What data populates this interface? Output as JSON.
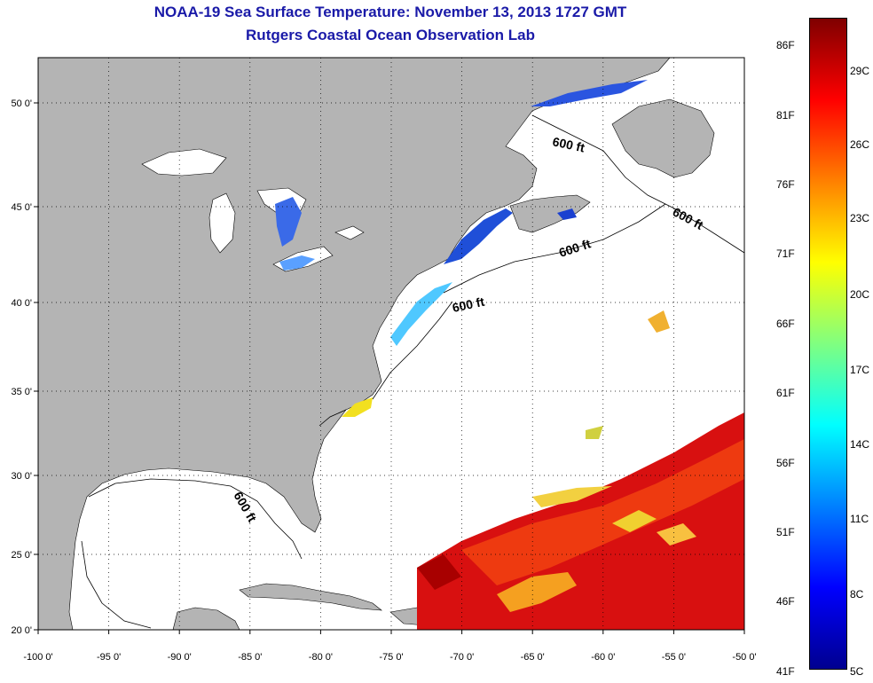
{
  "title": {
    "line1": "NOAA-19 Sea Surface Temperature:  November 13, 2013 1727 GMT",
    "line2": "Rutgers Coastal Ocean Observation Lab"
  },
  "map": {
    "lon_labels": [
      "-100 0'",
      "-95 0'",
      "-90 0'",
      "-85 0'",
      "-80 0'",
      "-75 0'",
      "-70 0'",
      "-65 0'",
      "-60 0'",
      "-55 0'",
      "-50 0'"
    ],
    "lat_labels": [
      "50 0'",
      "45 0'",
      "40 0'",
      "35 0'",
      "30 0'",
      "25 0'",
      "20 0'"
    ],
    "contour_labels": [
      "600 ft",
      "600 ft",
      "600 ft",
      "600 ft",
      "600 ft"
    ],
    "colors": {
      "land": "#b4b4b4",
      "ocean": "#ffffff",
      "frame": "#000000"
    }
  },
  "colorbar": {
    "fahrenheit_labels": [
      "86F",
      "81F",
      "76F",
      "71F",
      "66F",
      "61F",
      "56F",
      "51F",
      "46F",
      "41F"
    ],
    "celsius_labels": [
      "29C",
      "26C",
      "23C",
      "20C",
      "17C",
      "14C",
      "11C",
      "8C",
      "5C"
    ],
    "gradient": [
      "#7f0000",
      "#ff0000",
      "#ff8000",
      "#ffff00",
      "#80ff80",
      "#00ffff",
      "#0080ff",
      "#0000ff",
      "#00008f"
    ]
  }
}
